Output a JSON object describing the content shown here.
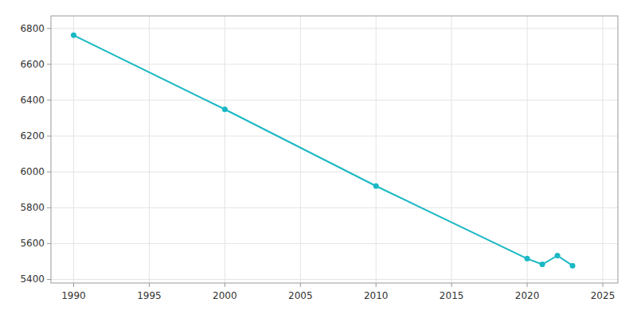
{
  "chart_data": {
    "type": "line",
    "x": [
      1990,
      2000,
      2010,
      2020,
      2021,
      2022,
      2023
    ],
    "values": [
      6762,
      6349,
      5921,
      5516,
      5484,
      5533,
      5477
    ],
    "color": "#1ab8c4",
    "marker": "circle",
    "xlim": [
      1988.5,
      2026
    ],
    "ylim": [
      5380,
      6870
    ],
    "xticks": [
      1990,
      1995,
      2000,
      2005,
      2010,
      2015,
      2020,
      2025
    ],
    "yticks": [
      5400,
      5600,
      5800,
      6000,
      6200,
      6400,
      6600,
      6800
    ],
    "grid": true
  }
}
